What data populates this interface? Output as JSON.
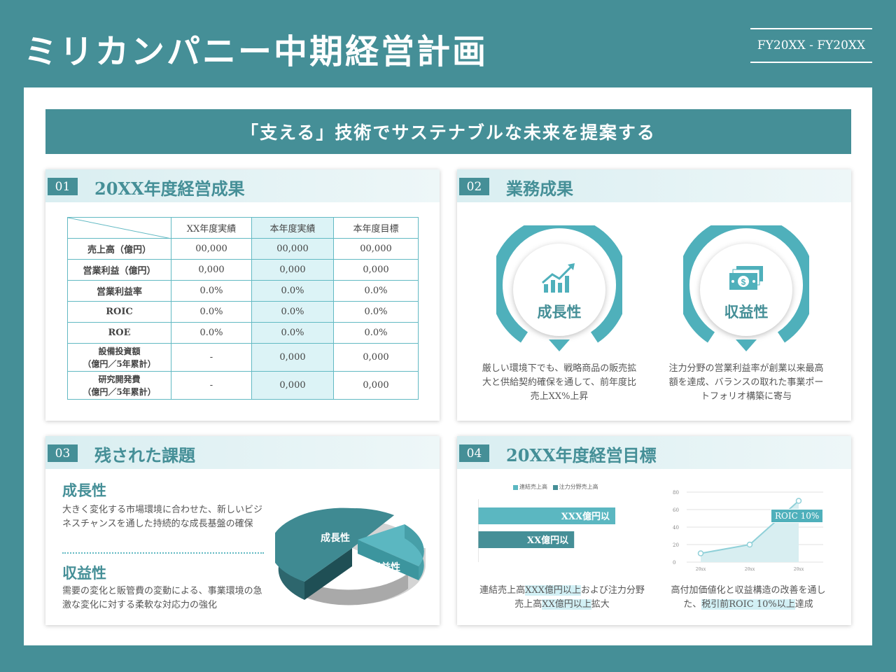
{
  "header": {
    "title": "ミリカンパニー中期経営計画",
    "period": "FY20XX - FY20XX"
  },
  "slogan": "「支える」技術でサステナブルな未来を提案する",
  "colors": {
    "primary": "#458f97",
    "accent": "#62b9c3",
    "light": "#dcf3f6"
  },
  "results": {
    "num": "01",
    "title": "20XX年度経営成果",
    "columns": [
      "XX年度実績",
      "本年度実績",
      "本年度目標"
    ],
    "rows": [
      {
        "label": "売上高（億円）",
        "values": [
          "00,000",
          "00,000",
          "00,000"
        ]
      },
      {
        "label": "営業利益（億円）",
        "values": [
          "0,000",
          "0,000",
          "0,000"
        ]
      },
      {
        "label": "営業利益率",
        "values": [
          "0.0%",
          "0.0%",
          "0.0%"
        ]
      },
      {
        "label": "ROIC",
        "values": [
          "0.0%",
          "0.0%",
          "0.0%"
        ]
      },
      {
        "label": "ROE",
        "values": [
          "0.0%",
          "0.0%",
          "0.0%"
        ]
      },
      {
        "label": "設備投資額",
        "sublabel": "（億円／5年累計）",
        "values": [
          "-",
          "0,000",
          "0,000"
        ]
      },
      {
        "label": "研究開発費",
        "sublabel": "（億円／5年累計）",
        "values": [
          "-",
          "0,000",
          "0,000"
        ]
      }
    ]
  },
  "business": {
    "num": "02",
    "title": "業務成果",
    "items": [
      {
        "label": "成長性",
        "icon": "growth-chart-icon",
        "desc": "厳しい環境下でも、戦略商品の販売拡大と供給契約確保を通して、前年度比売上XX%上昇"
      },
      {
        "label": "収益性",
        "icon": "money-icon",
        "desc": "注力分野の営業利益率が創業以来最高額を達成、バランスの取れた事業ポートフォリオ構築に寄与"
      }
    ]
  },
  "issues": {
    "num": "03",
    "title": "残された課題",
    "items": [
      {
        "heading": "成長性",
        "text": "大きく変化する市場環境に合わせた、新しいビジネスチャンスを通した持続的な成長基盤の確保"
      },
      {
        "heading": "収益性",
        "text": "需要の変化と販管費の変動による、事業環境の急激な変化に対する柔軟な対応力の強化"
      }
    ],
    "pie_labels": [
      "成長性",
      "収益性"
    ]
  },
  "targets": {
    "num": "04",
    "title": "20XX年度経営目標",
    "legend": [
      "連結売上高",
      "注力分野売上高"
    ],
    "bar_labels": [
      "XXX億円以",
      "XX億円以"
    ],
    "desc_left": {
      "pre": "連結売上高",
      "hl1": "XXX億円以上",
      "mid": "および注力分野売上高",
      "hl2": "XX億円以上",
      "post": "拡大"
    },
    "desc_right": {
      "pre": "高付加価値化と収益構造の改善を通した、",
      "hl": "税引前ROIC 10%以上",
      "post": "達成"
    },
    "roic_label": "ROIC 10%",
    "y_ticks": [
      "80",
      "60",
      "40",
      "20",
      "0"
    ],
    "x_ticks": [
      "20xx",
      "20xx",
      "20xx"
    ]
  },
  "chart_data": [
    {
      "type": "bar",
      "orientation": "horizontal",
      "series": [
        {
          "name": "連結売上高",
          "values": [
            100
          ]
        },
        {
          "name": "注力分野売上高",
          "values": [
            70
          ]
        }
      ]
    },
    {
      "type": "area",
      "x": [
        "20xx",
        "20xx",
        "20xx"
      ],
      "series": [
        {
          "values": [
            10,
            20,
            70
          ]
        }
      ],
      "ylim": [
        0,
        80
      ],
      "annotation": "ROIC 10%"
    }
  ]
}
